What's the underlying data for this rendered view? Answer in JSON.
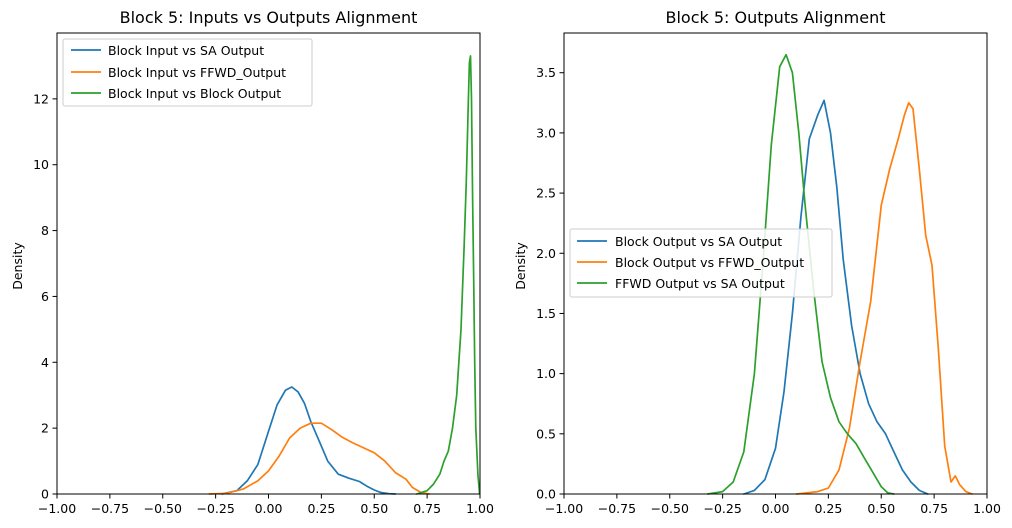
{
  "chart_data": [
    {
      "type": "line",
      "title": "Block 5: Inputs vs Outputs Alignment",
      "xlabel": "",
      "ylabel": "Density",
      "xlim": [
        -1.0,
        1.0
      ],
      "ylim": [
        0,
        14
      ],
      "xticks": [
        -1.0,
        -0.75,
        -0.5,
        -0.25,
        0.0,
        0.25,
        0.5,
        0.75,
        1.0
      ],
      "xtick_labels": [
        "−1.00",
        "−0.75",
        "−0.50",
        "−0.25",
        "0.00",
        "0.25",
        "0.50",
        "0.75",
        "1.00"
      ],
      "yticks": [
        0,
        2,
        4,
        6,
        8,
        10,
        12
      ],
      "ytick_labels": [
        "0",
        "2",
        "4",
        "6",
        "8",
        "10",
        "12"
      ],
      "legend_position": "upper-left",
      "grid": false,
      "series": [
        {
          "name": "Block Input vs SA Output",
          "color": "#1f77b4",
          "x": [
            -0.22,
            -0.15,
            -0.1,
            -0.05,
            0.0,
            0.04,
            0.08,
            0.11,
            0.14,
            0.17,
            0.2,
            0.24,
            0.28,
            0.33,
            0.38,
            0.43,
            0.47,
            0.5,
            0.53,
            0.57,
            0.6
          ],
          "y": [
            0.0,
            0.1,
            0.4,
            0.9,
            1.9,
            2.7,
            3.15,
            3.25,
            3.1,
            2.75,
            2.2,
            1.6,
            1.0,
            0.6,
            0.48,
            0.38,
            0.22,
            0.12,
            0.05,
            0.01,
            0.0
          ]
        },
        {
          "name": "Block Input vs FFWD_Output",
          "color": "#ff7f0e",
          "x": [
            -0.28,
            -0.2,
            -0.12,
            -0.05,
            0.0,
            0.05,
            0.1,
            0.15,
            0.2,
            0.25,
            0.3,
            0.35,
            0.4,
            0.45,
            0.5,
            0.55,
            0.6,
            0.65,
            0.68,
            0.72,
            0.76
          ],
          "y": [
            0.0,
            0.02,
            0.15,
            0.4,
            0.7,
            1.15,
            1.7,
            2.0,
            2.15,
            2.15,
            1.95,
            1.72,
            1.55,
            1.4,
            1.25,
            1.0,
            0.65,
            0.45,
            0.2,
            0.05,
            0.0
          ]
        },
        {
          "name": "Block Input vs Block Output",
          "color": "#2ca02c",
          "x": [
            0.7,
            0.75,
            0.78,
            0.81,
            0.83,
            0.85,
            0.87,
            0.89,
            0.91,
            0.925,
            0.935,
            0.945,
            0.95,
            0.955,
            0.96,
            0.965,
            0.97,
            0.975,
            0.98,
            0.99,
            0.998
          ],
          "y": [
            0.0,
            0.1,
            0.3,
            0.6,
            1.0,
            1.3,
            2.0,
            3.0,
            5.0,
            7.5,
            9.5,
            12.0,
            13.1,
            13.3,
            12.0,
            9.0,
            6.5,
            4.0,
            2.0,
            0.6,
            0.0
          ]
        }
      ]
    },
    {
      "type": "line",
      "title": "Block 5: Outputs Alignment",
      "xlabel": "",
      "ylabel": "Density",
      "xlim": [
        -1.0,
        1.0
      ],
      "ylim": [
        0,
        3.83
      ],
      "xticks": [
        -1.0,
        -0.75,
        -0.5,
        -0.25,
        0.0,
        0.25,
        0.5,
        0.75,
        1.0
      ],
      "xtick_labels": [
        "−1.00",
        "−0.75",
        "−0.50",
        "−0.25",
        "0.00",
        "0.25",
        "0.50",
        "0.75",
        "1.00"
      ],
      "yticks": [
        0.0,
        0.5,
        1.0,
        1.5,
        2.0,
        2.5,
        3.0,
        3.5
      ],
      "ytick_labels": [
        "0.0",
        "0.5",
        "1.0",
        "1.5",
        "2.0",
        "2.5",
        "3.0",
        "3.5"
      ],
      "legend_position": "center-left",
      "grid": false,
      "series": [
        {
          "name": "Block Output vs SA Output",
          "color": "#1f77b4",
          "x": [
            -0.15,
            -0.1,
            -0.05,
            0.0,
            0.04,
            0.08,
            0.12,
            0.16,
            0.2,
            0.23,
            0.26,
            0.29,
            0.32,
            0.36,
            0.4,
            0.44,
            0.48,
            0.52,
            0.56,
            0.6,
            0.64,
            0.68,
            0.72
          ],
          "y": [
            0.0,
            0.03,
            0.12,
            0.38,
            0.85,
            1.5,
            2.3,
            2.95,
            3.15,
            3.27,
            3.0,
            2.55,
            1.95,
            1.4,
            1.0,
            0.75,
            0.6,
            0.5,
            0.35,
            0.2,
            0.1,
            0.03,
            0.0
          ]
        },
        {
          "name": "Block Output vs FFWD_Output",
          "color": "#ff7f0e",
          "x": [
            0.1,
            0.2,
            0.25,
            0.3,
            0.35,
            0.4,
            0.45,
            0.5,
            0.54,
            0.58,
            0.61,
            0.63,
            0.65,
            0.68,
            0.71,
            0.74,
            0.77,
            0.8,
            0.83,
            0.85,
            0.87,
            0.9,
            0.93
          ],
          "y": [
            0.0,
            0.02,
            0.05,
            0.2,
            0.55,
            1.1,
            1.6,
            2.4,
            2.7,
            2.95,
            3.15,
            3.25,
            3.2,
            2.7,
            2.15,
            1.9,
            1.2,
            0.4,
            0.1,
            0.15,
            0.08,
            0.02,
            0.0
          ]
        },
        {
          "name": "FFWD Output vs SA Output",
          "color": "#2ca02c",
          "x": [
            -0.32,
            -0.25,
            -0.2,
            -0.15,
            -0.1,
            -0.06,
            -0.02,
            0.02,
            0.05,
            0.08,
            0.11,
            0.14,
            0.18,
            0.22,
            0.26,
            0.3,
            0.34,
            0.38,
            0.42,
            0.46,
            0.5,
            0.53,
            0.56
          ],
          "y": [
            0.0,
            0.02,
            0.1,
            0.35,
            1.0,
            1.9,
            2.9,
            3.55,
            3.65,
            3.5,
            3.0,
            2.4,
            1.7,
            1.1,
            0.8,
            0.6,
            0.5,
            0.42,
            0.3,
            0.18,
            0.06,
            0.01,
            0.0
          ]
        }
      ]
    }
  ]
}
